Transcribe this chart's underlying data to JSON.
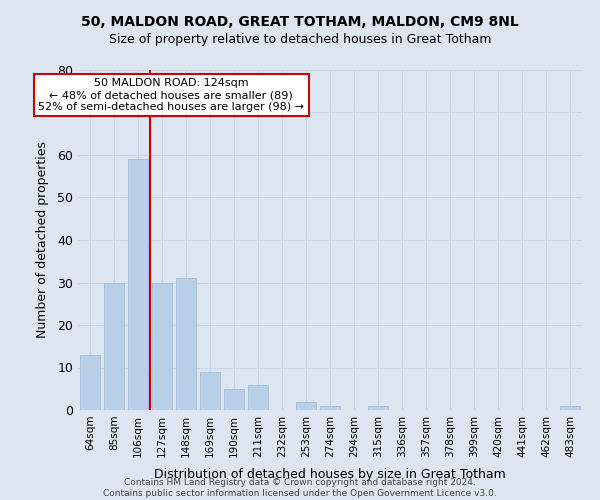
{
  "title1": "50, MALDON ROAD, GREAT TOTHAM, MALDON, CM9 8NL",
  "title2": "Size of property relative to detached houses in Great Totham",
  "xlabel": "Distribution of detached houses by size in Great Totham",
  "ylabel": "Number of detached properties",
  "categories": [
    "64sqm",
    "85sqm",
    "106sqm",
    "127sqm",
    "148sqm",
    "169sqm",
    "190sqm",
    "211sqm",
    "232sqm",
    "253sqm",
    "274sqm",
    "294sqm",
    "315sqm",
    "336sqm",
    "357sqm",
    "378sqm",
    "399sqm",
    "420sqm",
    "441sqm",
    "462sqm",
    "483sqm"
  ],
  "values": [
    13,
    30,
    59,
    30,
    31,
    9,
    5,
    6,
    0,
    2,
    1,
    0,
    1,
    0,
    0,
    0,
    0,
    0,
    0,
    0,
    1
  ],
  "bar_color": "#b8cfe8",
  "bar_edge_color": "#9ab8d8",
  "vline_x": 2.5,
  "vline_color": "#cc0000",
  "annotation_text": "50 MALDON ROAD: 124sqm\n← 48% of detached houses are smaller (89)\n52% of semi-detached houses are larger (98) →",
  "annotation_box_facecolor": "#ffffff",
  "annotation_box_edgecolor": "#cc0000",
  "ylim": [
    0,
    80
  ],
  "yticks": [
    0,
    10,
    20,
    30,
    40,
    50,
    60,
    70,
    80
  ],
  "grid_color": "#c8d4e8",
  "background_color": "#dde6f0",
  "footer": "Contains HM Land Registry data © Crown copyright and database right 2024.\nContains public sector information licensed under the Open Government Licence v3.0."
}
